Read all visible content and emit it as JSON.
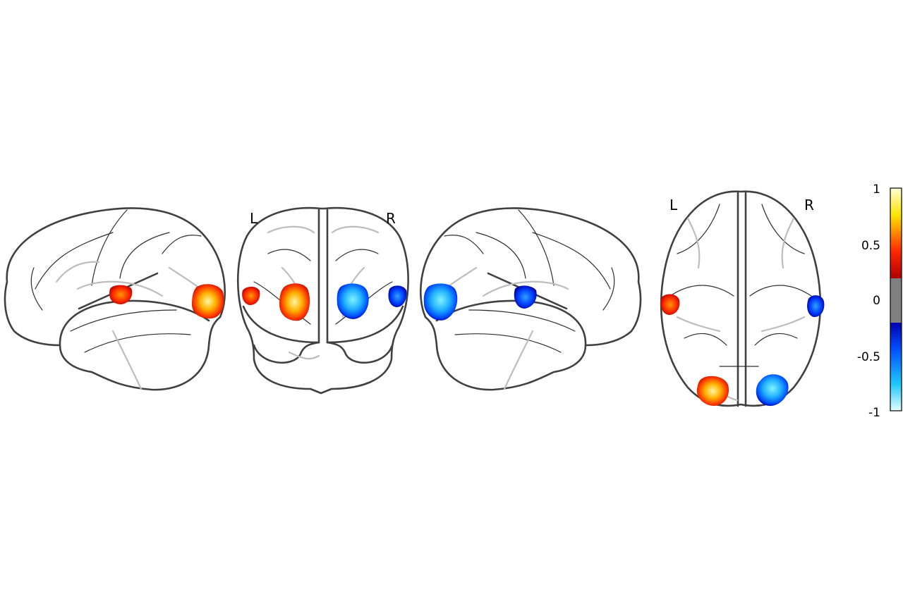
{
  "views": {
    "coronal": {
      "left_label": "L",
      "right_label": "R"
    },
    "axial": {
      "left_label": "L",
      "right_label": "R"
    }
  },
  "colorbar": {
    "ticks": [
      "1",
      "0.5",
      "0",
      "-0.5",
      "-1"
    ],
    "vmin": -1,
    "vmax": 1,
    "threshold_band": [
      -0.2,
      0.2
    ],
    "colors": {
      "max": "#ffffd0",
      "high": "#ffe000",
      "mid_pos": "#ff2000",
      "low_pos": "#b00000",
      "threshold": "#808080",
      "low_neg": "#0000b0",
      "mid_neg": "#0060ff",
      "min": "#e0ffff"
    }
  }
}
